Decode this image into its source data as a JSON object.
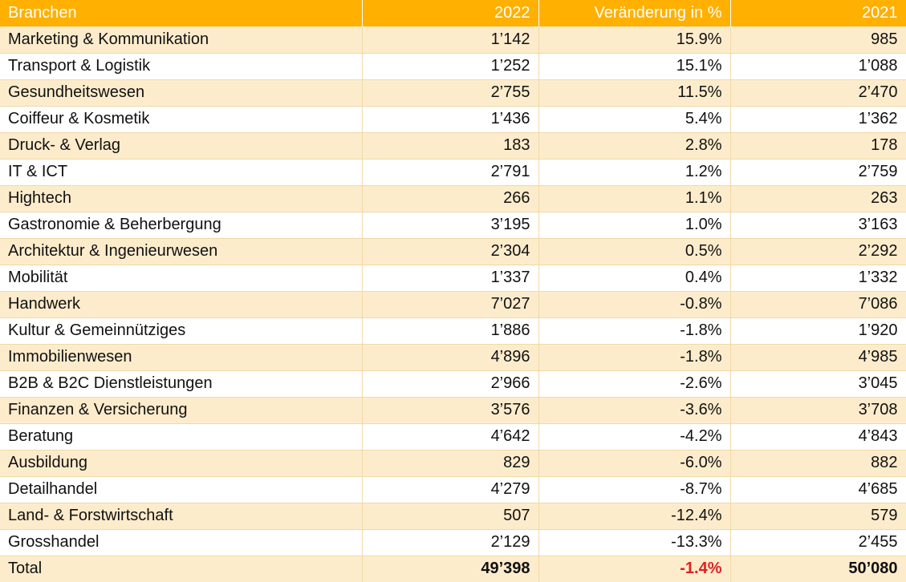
{
  "headers": {
    "branch": "Branchen",
    "y2022": "2022",
    "change": "Veränderung in %",
    "y2021": "2021"
  },
  "rows": [
    {
      "name": "Marketing & Kommunikation",
      "y2022": "1’142",
      "change": "15.9%",
      "y2021": "985",
      "trend": "pos"
    },
    {
      "name": "Transport & Logistik",
      "y2022": "1’252",
      "change": "15.1%",
      "y2021": "1’088",
      "trend": "pos"
    },
    {
      "name": "Gesundheitswesen",
      "y2022": "2’755",
      "change": "11.5%",
      "y2021": "2’470",
      "trend": "pos"
    },
    {
      "name": "Coiffeur & Kosmetik",
      "y2022": "1’436",
      "change": "5.4%",
      "y2021": "1’362",
      "trend": "pos"
    },
    {
      "name": "Druck- & Verlag",
      "y2022": "183",
      "change": "2.8%",
      "y2021": "178",
      "trend": "pos"
    },
    {
      "name": "IT & ICT",
      "y2022": "2’791",
      "change": "1.2%",
      "y2021": "2’759",
      "trend": "pos"
    },
    {
      "name": "Hightech",
      "y2022": "266",
      "change": "1.1%",
      "y2021": "263",
      "trend": "pos"
    },
    {
      "name": "Gastronomie & Beherbergung",
      "y2022": "3’195",
      "change": "1.0%",
      "y2021": "3’163",
      "trend": "pos"
    },
    {
      "name": "Architektur & Ingenieurwesen",
      "y2022": "2’304",
      "change": "0.5%",
      "y2021": "2’292",
      "trend": "pos"
    },
    {
      "name": "Mobilität",
      "y2022": "1’337",
      "change": "0.4%",
      "y2021": "1’332",
      "trend": "pos"
    },
    {
      "name": "Handwerk",
      "y2022": "7’027",
      "change": "-0.8%",
      "y2021": "7’086",
      "trend": "neg"
    },
    {
      "name": "Kultur & Gemeinnütziges",
      "y2022": "1’886",
      "change": "-1.8%",
      "y2021": "1’920",
      "trend": "neg"
    },
    {
      "name": "Immobilienwesen",
      "y2022": "4’896",
      "change": "-1.8%",
      "y2021": "4’985",
      "trend": "neg"
    },
    {
      "name": "B2B & B2C Dienstleistungen",
      "y2022": "2’966",
      "change": "-2.6%",
      "y2021": "3’045",
      "trend": "neg"
    },
    {
      "name": "Finanzen & Versicherung",
      "y2022": "3’576",
      "change": "-3.6%",
      "y2021": "3’708",
      "trend": "neg"
    },
    {
      "name": "Beratung",
      "y2022": "4’642",
      "change": "-4.2%",
      "y2021": "4’843",
      "trend": "neg"
    },
    {
      "name": "Ausbildung",
      "y2022": "829",
      "change": "-6.0%",
      "y2021": "882",
      "trend": "neg"
    },
    {
      "name": "Detailhandel",
      "y2022": "4’279",
      "change": "-8.7%",
      "y2021": "4’685",
      "trend": "neg"
    },
    {
      "name": "Land- & Forstwirtschaft",
      "y2022": "507",
      "change": "-12.4%",
      "y2021": "579",
      "trend": "neg"
    },
    {
      "name": "Grosshandel",
      "y2022": "2’129",
      "change": "-13.3%",
      "y2021": "2’455",
      "trend": "neg"
    }
  ],
  "total": {
    "name": "Total",
    "y2022": "49’398",
    "change": "-1.4%",
    "y2021": "50’080",
    "trend": "neg"
  },
  "colors": {
    "header_bg": "#ffb000",
    "stripe_bg": "#fdeccc",
    "positive": "#2e8b22",
    "negative": "#e02020"
  }
}
